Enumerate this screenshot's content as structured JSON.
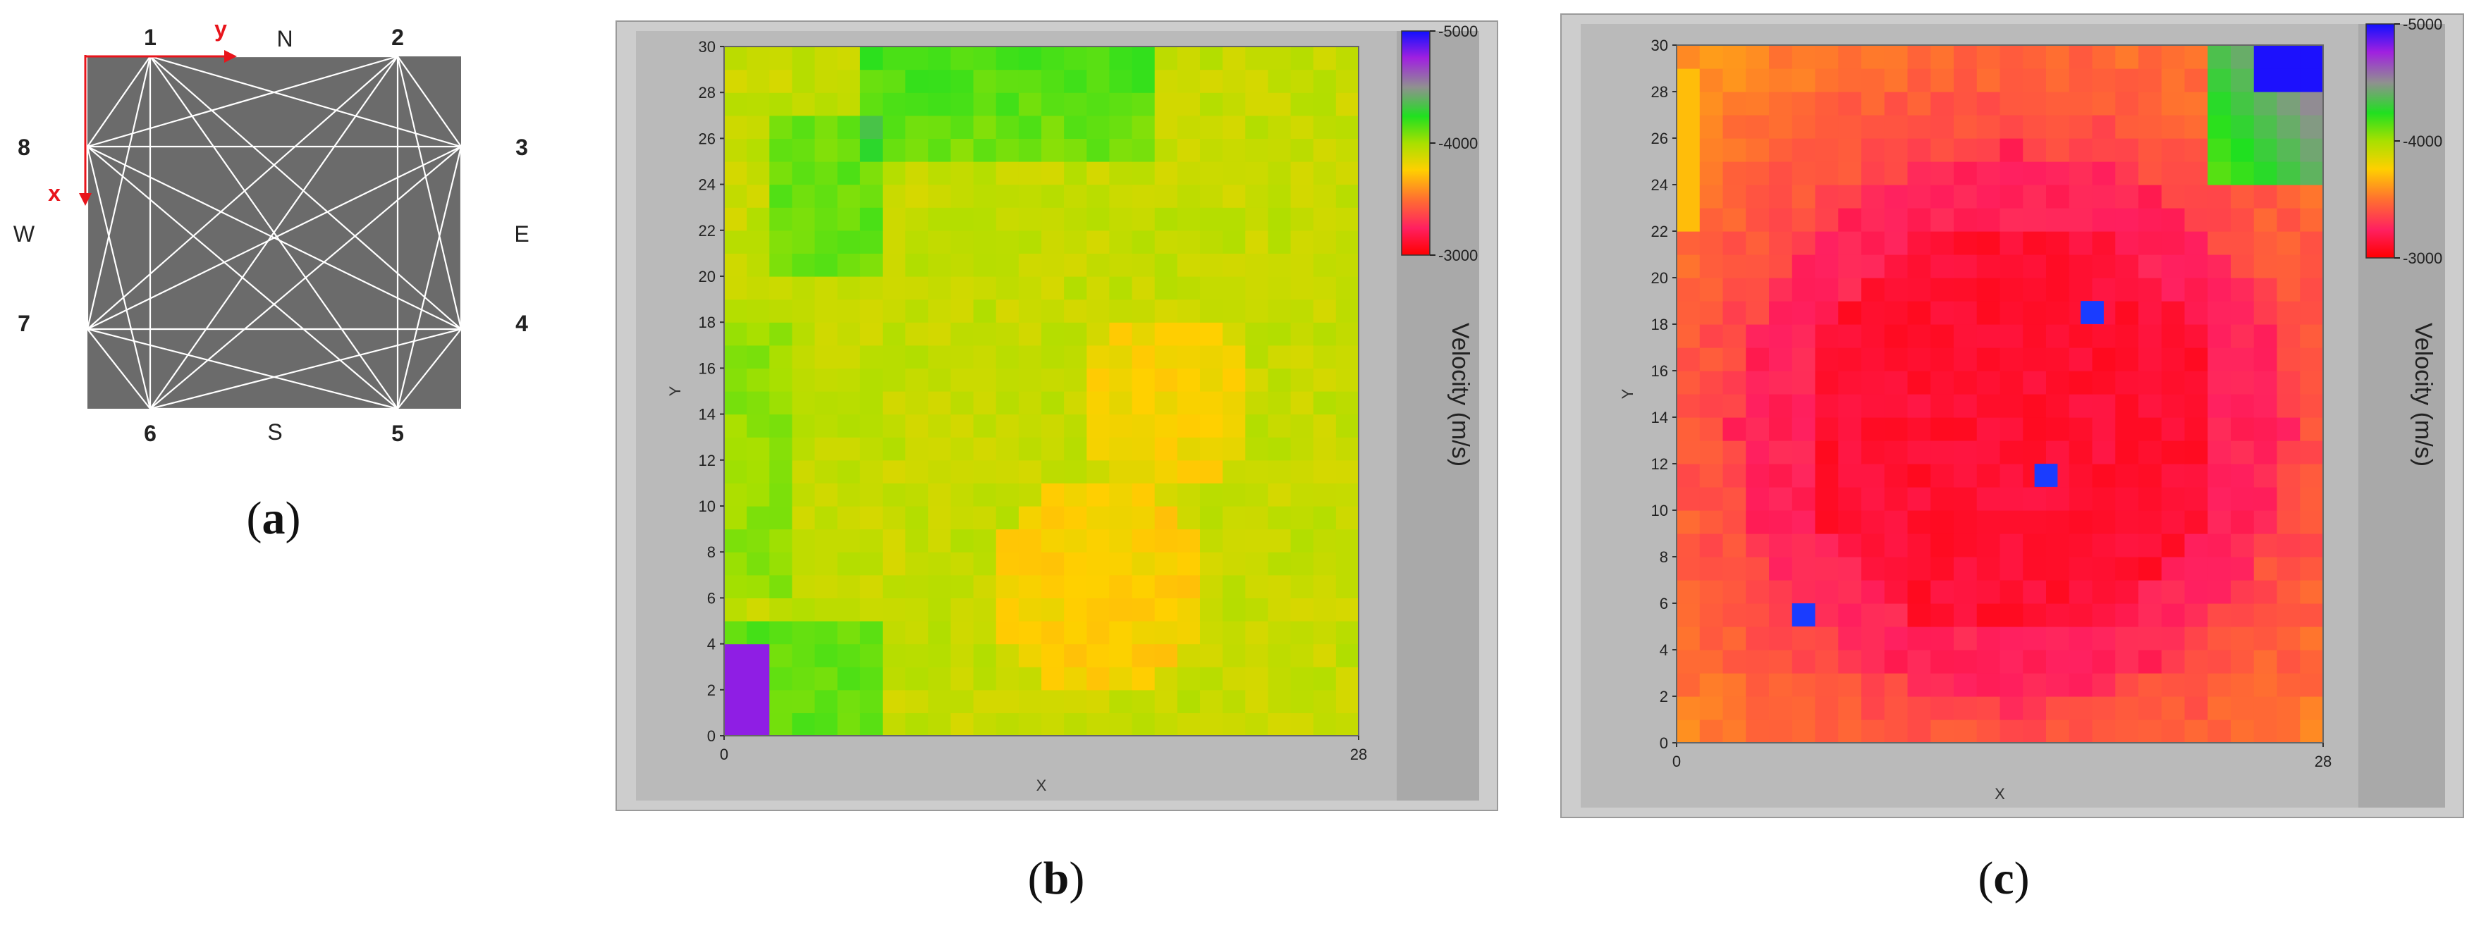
{
  "panel_a": {
    "nodes": [
      {
        "id": "1",
        "label": "1"
      },
      {
        "id": "2",
        "label": "2"
      },
      {
        "id": "3",
        "label": "3"
      },
      {
        "id": "4",
        "label": "4"
      },
      {
        "id": "5",
        "label": "5"
      },
      {
        "id": "6",
        "label": "6"
      },
      {
        "id": "7",
        "label": "7"
      },
      {
        "id": "8",
        "label": "8"
      }
    ],
    "compass": {
      "north": "N",
      "south": "S",
      "east": "E",
      "west": "W"
    },
    "axis_x_label": "x",
    "axis_y_label": "y",
    "axis_color": "#e8141b",
    "paths": [
      [
        "1",
        "2"
      ],
      [
        "1",
        "3"
      ],
      [
        "1",
        "4"
      ],
      [
        "1",
        "5"
      ],
      [
        "1",
        "6"
      ],
      [
        "1",
        "7"
      ],
      [
        "1",
        "8"
      ],
      [
        "2",
        "3"
      ],
      [
        "2",
        "4"
      ],
      [
        "2",
        "5"
      ],
      [
        "2",
        "6"
      ],
      [
        "2",
        "7"
      ],
      [
        "2",
        "8"
      ],
      [
        "3",
        "4"
      ],
      [
        "3",
        "5"
      ],
      [
        "3",
        "6"
      ],
      [
        "3",
        "7"
      ],
      [
        "3",
        "8"
      ],
      [
        "4",
        "5"
      ],
      [
        "4",
        "6"
      ],
      [
        "4",
        "7"
      ],
      [
        "4",
        "8"
      ],
      [
        "5",
        "6"
      ],
      [
        "5",
        "7"
      ],
      [
        "5",
        "8"
      ],
      [
        "6",
        "7"
      ],
      [
        "6",
        "8"
      ],
      [
        "7",
        "8"
      ]
    ],
    "caption": "(a)",
    "caption_open": "(",
    "caption_letter": "a",
    "caption_close": ")"
  },
  "chart_data": [
    {
      "type": "heatmap",
      "panel": "b",
      "caption": "(b)",
      "caption_open": "(",
      "caption_letter": "b",
      "caption_close": ")",
      "xlabel": "X",
      "ylabel": "Y",
      "xlim": [
        0,
        28
      ],
      "ylim": [
        0,
        30
      ],
      "x_ticks": [
        "0",
        "28"
      ],
      "y_ticks": [
        "0",
        "2",
        "4",
        "6",
        "8",
        "10",
        "12",
        "14",
        "16",
        "18",
        "20",
        "22",
        "24",
        "26",
        "28",
        "30"
      ],
      "colorbar": {
        "label": "Velocity (m/s)",
        "ticks": [
          "3000",
          "4000",
          "5000"
        ],
        "range": [
          3000,
          5000
        ]
      },
      "grid_size": {
        "cols": 28,
        "rows": 30
      },
      "summary": "Mostly 4200-4600 m/s; greener (higher velocity) near top and left-upper region; purple (~4900) patch at bottom-left corner."
    },
    {
      "type": "heatmap",
      "panel": "c",
      "caption": "(c)",
      "caption_open": "(",
      "caption_letter": "c",
      "caption_close": ")",
      "xlabel": "X",
      "ylabel": "Y",
      "xlim": [
        0,
        28
      ],
      "ylim": [
        0,
        30
      ],
      "x_ticks": [
        "0",
        "28"
      ],
      "y_ticks": [
        "0",
        "2",
        "4",
        "6",
        "8",
        "10",
        "12",
        "14",
        "16",
        "18",
        "20",
        "22",
        "24",
        "26",
        "28",
        "30"
      ],
      "colorbar": {
        "label": "Velocity (m/s)",
        "ticks": [
          "3000",
          "4000",
          "5000"
        ],
        "range": [
          3000,
          5000
        ]
      },
      "grid_size": {
        "cols": 28,
        "rows": 30
      },
      "highlight_cells": [
        {
          "x": 5.5,
          "y": 5.5
        },
        {
          "x": 16,
          "y": 11.5
        },
        {
          "x": 18,
          "y": 18.5
        }
      ],
      "summary": "Mostly 3000-3400 m/s (red/pink) with a darker pink core; orange toward edges; green and blue (high velocity) in top-right corner; three isolated blue cells."
    }
  ],
  "colors": {
    "frame_outer": "#cfcfcf",
    "frame_inner": "#b3b3b3",
    "panel_grey": "#6b6b6b",
    "path_white": "#ffffff"
  }
}
